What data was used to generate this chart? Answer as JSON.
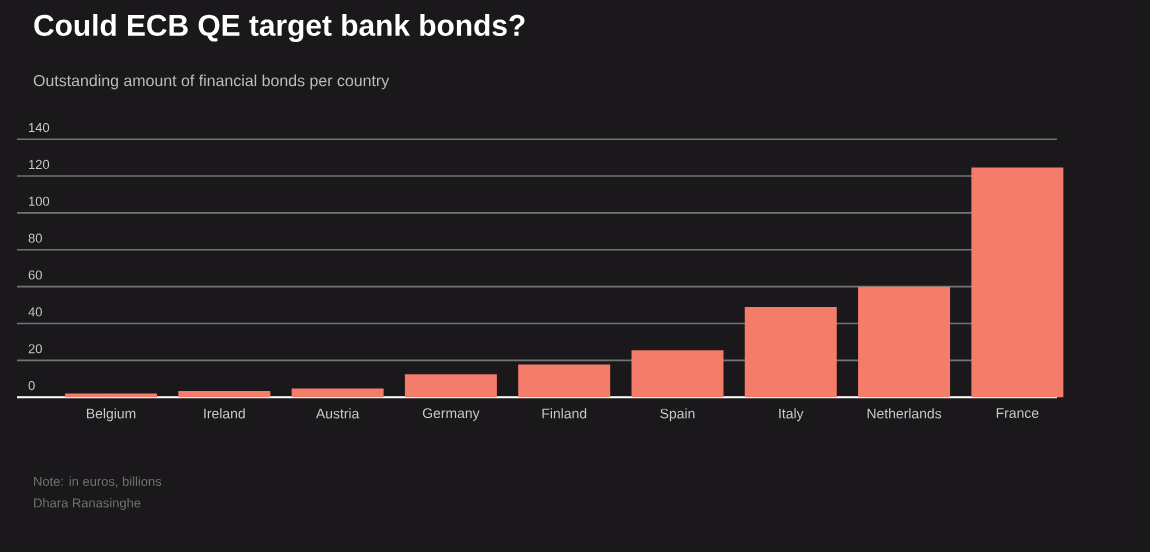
{
  "chart_data": {
    "type": "bar",
    "title": "Could ECB QE target bank bonds?",
    "subtitle": "Outstanding amount of financial bonds per country",
    "categories": [
      "Belgium",
      "Ireland",
      "Austria",
      "Germany",
      "Finland",
      "Spain",
      "Italy",
      "Netherlands",
      "France"
    ],
    "values": [
      2,
      3.3,
      4.7,
      12.4,
      17.8,
      25.5,
      49,
      60,
      124.7
    ],
    "color": "#f47c6a",
    "ylim": [
      0,
      140
    ],
    "yticks": [
      0,
      20,
      40,
      60,
      80,
      100,
      120,
      140
    ],
    "grid": "y",
    "annotations": [
      "Note: in euros, billions",
      "Dhara Ranasinghe"
    ]
  }
}
